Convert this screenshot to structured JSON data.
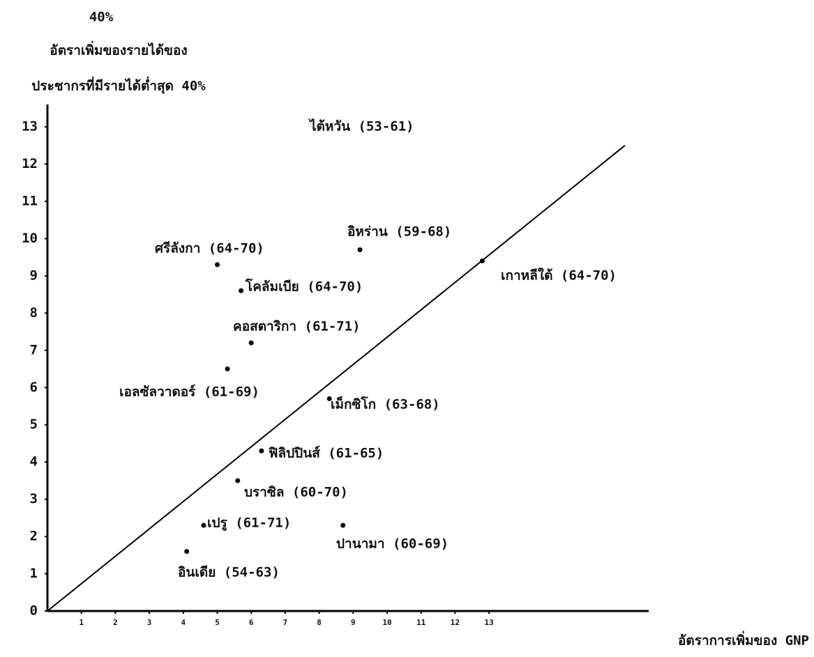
{
  "chart_data": {
    "type": "scatter",
    "y_label_lines": [
      "40%",
      "อัตราเพิ่มของรายได้ของ",
      "ประชากรที่มีรายได้ต่ำสุด 40%"
    ],
    "x_label": "อัตราการเพิ่มของ GNP",
    "xlim": [
      0,
      17.7
    ],
    "ylim": [
      0,
      13.6
    ],
    "xticks": [
      1,
      2,
      3,
      4,
      5,
      6,
      7,
      8,
      9,
      10,
      11,
      12,
      13
    ],
    "yticks": [
      0,
      1,
      2,
      3,
      4,
      5,
      6,
      7,
      8,
      9,
      10,
      11,
      12,
      13
    ],
    "color": "#000000",
    "points": [
      {
        "label": "ศรีลังกา (64-70)",
        "x": 5.0,
        "y": 9.3
      },
      {
        "label": "โคลัมเบีย (64-70)",
        "x": 5.7,
        "y": 8.6
      },
      {
        "label": "อิหร่าน (59-68)",
        "x": 9.2,
        "y": 9.7
      },
      {
        "label": "เกาหลีใต้ (64-70)",
        "x": 12.8,
        "y": 9.4
      },
      {
        "label": "คอสตาริกา (61-71)",
        "x": 6.0,
        "y": 7.2
      },
      {
        "label": "เอลซัลวาดอร์ (61-69)",
        "x": 5.3,
        "y": 6.5
      },
      {
        "label": "เม็กซิโก (63-68)",
        "x": 8.3,
        "y": 5.7
      },
      {
        "label": "ฟิลิปปินส์ (61-65)",
        "x": 6.3,
        "y": 4.3
      },
      {
        "label": "บราซิล (60-70)",
        "x": 5.6,
        "y": 3.5
      },
      {
        "label": "เปรู (61-71)",
        "x": 4.6,
        "y": 2.3
      },
      {
        "label": "ปานามา (60-69)",
        "x": 8.7,
        "y": 2.3
      },
      {
        "label": "อินเดีย (54-63)",
        "x": 4.1,
        "y": 1.6
      }
    ],
    "annotation": "ไต้หวัน (53-61)",
    "reference_line": {
      "x": [
        0,
        17
      ],
      "y": [
        0,
        12.5
      ]
    }
  }
}
